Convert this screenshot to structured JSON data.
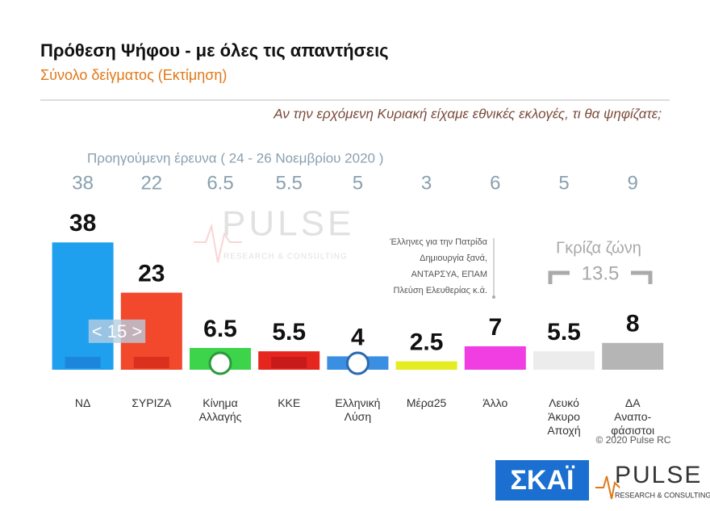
{
  "chart_data": {
    "type": "bar",
    "title": "Πρόθεση Ψήφου - με όλες τις απαντήσεις",
    "subtitle": "Σύνολο δείγματος   (Εκτίμηση)",
    "question": "Αν την ερχόμενη Κυριακή είχαμε εθνικές εκλογές, τι θα ψηφίζατε;",
    "previous_label": "Προηγούμενη έρευνα  ( 24 - 26  Νοεμβρίου  2020 )",
    "categories": [
      "ΝΔ",
      "ΣΥΡΙΖΑ",
      "Κίνημα\nΑλλαγής",
      "ΚΚΕ",
      "Ελληνική\nΛύση",
      "Μέρα25",
      "Άλλο",
      "Λευκό\nΆκυρο\nΑποχή",
      "ΔΑ\nΑναπο-\nφάσιστοι"
    ],
    "series": [
      {
        "name": "Εκτίμηση",
        "values": [
          38,
          23,
          6.5,
          5.5,
          4,
          2.5,
          7,
          5.5,
          8
        ],
        "colors": [
          "#1ea0ee",
          "#f2482c",
          "#3dd44c",
          "#e6261e",
          "#3a8fe2",
          "#e4ec22",
          "#f03ee2",
          "#ececec",
          "#b5b5b5"
        ]
      },
      {
        "name": "Προηγούμενη έρευνα",
        "values": [
          38,
          22,
          6.5,
          5.5,
          5,
          3,
          6,
          5,
          9
        ]
      }
    ],
    "ylim": [
      0,
      40
    ],
    "annotations": {
      "lead": "< 15 >",
      "grey_zone": "Γκρίζα ζώνη",
      "grey_zone_value": "13.5",
      "other_note": [
        "Έλληνες για την Πατρίδα",
        "Δημιουργία ξανά,",
        "ΑΝΤΑΡΣΥΑ, ΕΠΑΜ",
        "Πλεύση Ελευθερίας κ.ά."
      ],
      "copyright": "© 2020 Pulse RC"
    },
    "branding": {
      "watermark": "PULSE",
      "watermark_sub": "RESEARCH & CONSULTING",
      "channel": "ΣΚΑΪ",
      "pollster": "PULSE",
      "pollster_sub": "RESEARCH & CONSULTING"
    }
  }
}
